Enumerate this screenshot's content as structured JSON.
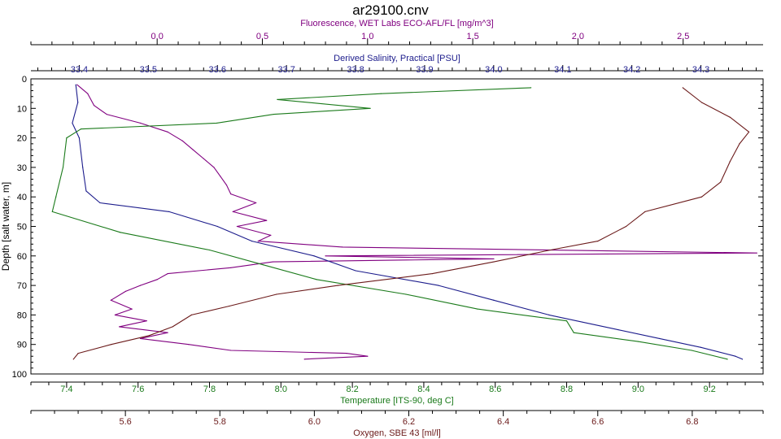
{
  "chart_data": {
    "type": "line",
    "title": "ar29100.cnv",
    "y_axis": {
      "label": "Depth [salt water, m]",
      "range": [
        0,
        100
      ],
      "ticks": [
        0,
        10,
        20,
        30,
        40,
        50,
        60,
        70,
        80,
        90,
        100
      ],
      "inverted": true
    },
    "axes": [
      {
        "id": "fluorescence",
        "label": "Fluorescence, WET Labs ECO-AFL/FL [mg/m^3]",
        "position": "top-outer",
        "color": "#800080",
        "range": [
          -0.6,
          2.88
        ],
        "ticks": [
          0.0,
          0.5,
          1.0,
          1.5,
          2.0,
          2.5
        ],
        "tick_labels": [
          "0.0",
          "0.5",
          "1.0",
          "1.5",
          "2.0",
          "2.5"
        ]
      },
      {
        "id": "salinity",
        "label": "Derived Salinity, Practical [PSU]",
        "position": "top-inner",
        "color": "#1c1c8c",
        "range": [
          33.33,
          34.39
        ],
        "ticks": [
          33.4,
          33.5,
          33.6,
          33.7,
          33.8,
          33.9,
          34.0,
          34.1,
          34.2,
          34.3
        ],
        "tick_labels": [
          "33.4",
          "33.5",
          "33.6",
          "33.7",
          "33.8",
          "33.9",
          "34.0",
          "34.1",
          "34.2",
          "34.3"
        ]
      },
      {
        "id": "temperature",
        "label": "Temperature [ITS-90, deg C]",
        "position": "bottom-inner",
        "color": "#1a7a1a",
        "range": [
          7.3,
          9.35
        ],
        "ticks": [
          7.4,
          7.6,
          7.8,
          8.0,
          8.2,
          8.4,
          8.6,
          8.8,
          9.0,
          9.2
        ],
        "tick_labels": [
          "7.4",
          "7.6",
          "7.8",
          "8.0",
          "8.2",
          "8.4",
          "8.6",
          "8.8",
          "9.0",
          "9.2"
        ]
      },
      {
        "id": "oxygen",
        "label": "Oxygen, SBE 43 [ml/l]",
        "position": "bottom-outer",
        "color": "#6b1a1a",
        "range": [
          5.4,
          6.95
        ],
        "ticks": [
          5.6,
          5.8,
          6.0,
          6.2,
          6.4,
          6.6,
          6.8
        ],
        "tick_labels": [
          "5.6",
          "5.8",
          "6.0",
          "6.2",
          "6.4",
          "6.6",
          "6.8"
        ]
      }
    ],
    "series": [
      {
        "axis": "fluorescence",
        "color": "#800080",
        "points": [
          {
            "depth": 2,
            "value": -0.38
          },
          {
            "depth": 5,
            "value": -0.33
          },
          {
            "depth": 9,
            "value": -0.3
          },
          {
            "depth": 12,
            "value": -0.24
          },
          {
            "depth": 15,
            "value": -0.08
          },
          {
            "depth": 18,
            "value": 0.05
          },
          {
            "depth": 21,
            "value": 0.12
          },
          {
            "depth": 24,
            "value": 0.17
          },
          {
            "depth": 27,
            "value": 0.22
          },
          {
            "depth": 30,
            "value": 0.27
          },
          {
            "depth": 33,
            "value": 0.3
          },
          {
            "depth": 36,
            "value": 0.33
          },
          {
            "depth": 39,
            "value": 0.35
          },
          {
            "depth": 42,
            "value": 0.47
          },
          {
            "depth": 45,
            "value": 0.36
          },
          {
            "depth": 48,
            "value": 0.52
          },
          {
            "depth": 50,
            "value": 0.38
          },
          {
            "depth": 53,
            "value": 0.54
          },
          {
            "depth": 55,
            "value": 0.48
          },
          {
            "depth": 57,
            "value": 0.88
          },
          {
            "depth": 59,
            "value": 2.85
          },
          {
            "depth": 60,
            "value": 0.8
          },
          {
            "depth": 61,
            "value": 1.6
          },
          {
            "depth": 62,
            "value": 0.55
          },
          {
            "depth": 64,
            "value": 0.35
          },
          {
            "depth": 66,
            "value": 0.05
          },
          {
            "depth": 68,
            "value": 0.0
          },
          {
            "depth": 70,
            "value": -0.08
          },
          {
            "depth": 72,
            "value": -0.15
          },
          {
            "depth": 75,
            "value": -0.22
          },
          {
            "depth": 78,
            "value": -0.12
          },
          {
            "depth": 80,
            "value": -0.2
          },
          {
            "depth": 82,
            "value": -0.05
          },
          {
            "depth": 84,
            "value": -0.18
          },
          {
            "depth": 86,
            "value": 0.05
          },
          {
            "depth": 88,
            "value": -0.08
          },
          {
            "depth": 90,
            "value": 0.15
          },
          {
            "depth": 92,
            "value": 0.35
          },
          {
            "depth": 93,
            "value": 0.9
          },
          {
            "depth": 94,
            "value": 1.0
          },
          {
            "depth": 95,
            "value": 0.7
          }
        ]
      },
      {
        "axis": "salinity",
        "color": "#1c1c8c",
        "points": [
          {
            "depth": 2,
            "value": 33.395
          },
          {
            "depth": 8,
            "value": 33.398
          },
          {
            "depth": 15,
            "value": 33.39
          },
          {
            "depth": 20,
            "value": 33.4
          },
          {
            "depth": 30,
            "value": 33.405
          },
          {
            "depth": 38,
            "value": 33.41
          },
          {
            "depth": 42,
            "value": 33.43
          },
          {
            "depth": 45,
            "value": 33.53
          },
          {
            "depth": 50,
            "value": 33.6
          },
          {
            "depth": 55,
            "value": 33.65
          },
          {
            "depth": 60,
            "value": 33.74
          },
          {
            "depth": 65,
            "value": 33.8
          },
          {
            "depth": 70,
            "value": 33.92
          },
          {
            "depth": 75,
            "value": 34.0
          },
          {
            "depth": 80,
            "value": 34.08
          },
          {
            "depth": 85,
            "value": 34.18
          },
          {
            "depth": 88,
            "value": 34.24
          },
          {
            "depth": 91,
            "value": 34.3
          },
          {
            "depth": 94,
            "value": 34.35
          },
          {
            "depth": 95,
            "value": 34.36
          }
        ]
      },
      {
        "axis": "temperature",
        "color": "#1a7a1a",
        "points": [
          {
            "depth": 3,
            "value": 8.7
          },
          {
            "depth": 5,
            "value": 8.28
          },
          {
            "depth": 7,
            "value": 7.99
          },
          {
            "depth": 10,
            "value": 8.25
          },
          {
            "depth": 12,
            "value": 7.98
          },
          {
            "depth": 15,
            "value": 7.82
          },
          {
            "depth": 17,
            "value": 7.44
          },
          {
            "depth": 20,
            "value": 7.4
          },
          {
            "depth": 30,
            "value": 7.39
          },
          {
            "depth": 40,
            "value": 7.37
          },
          {
            "depth": 45,
            "value": 7.36
          },
          {
            "depth": 52,
            "value": 7.55
          },
          {
            "depth": 58,
            "value": 7.8
          },
          {
            "depth": 63,
            "value": 7.95
          },
          {
            "depth": 68,
            "value": 8.1
          },
          {
            "depth": 73,
            "value": 8.35
          },
          {
            "depth": 78,
            "value": 8.55
          },
          {
            "depth": 82,
            "value": 8.8
          },
          {
            "depth": 86,
            "value": 8.82
          },
          {
            "depth": 89,
            "value": 9.0
          },
          {
            "depth": 92,
            "value": 9.15
          },
          {
            "depth": 95,
            "value": 9.25
          }
        ]
      },
      {
        "axis": "oxygen",
        "color": "#6b1a1a",
        "points": [
          {
            "depth": 3,
            "value": 6.78
          },
          {
            "depth": 8,
            "value": 6.82
          },
          {
            "depth": 13,
            "value": 6.88
          },
          {
            "depth": 18,
            "value": 6.92
          },
          {
            "depth": 22,
            "value": 6.9
          },
          {
            "depth": 28,
            "value": 6.88
          },
          {
            "depth": 35,
            "value": 6.86
          },
          {
            "depth": 40,
            "value": 6.82
          },
          {
            "depth": 45,
            "value": 6.7
          },
          {
            "depth": 50,
            "value": 6.66
          },
          {
            "depth": 55,
            "value": 6.6
          },
          {
            "depth": 58,
            "value": 6.5
          },
          {
            "depth": 62,
            "value": 6.38
          },
          {
            "depth": 66,
            "value": 6.25
          },
          {
            "depth": 70,
            "value": 6.05
          },
          {
            "depth": 73,
            "value": 5.92
          },
          {
            "depth": 77,
            "value": 5.82
          },
          {
            "depth": 80,
            "value": 5.74
          },
          {
            "depth": 84,
            "value": 5.7
          },
          {
            "depth": 87,
            "value": 5.65
          },
          {
            "depth": 90,
            "value": 5.57
          },
          {
            "depth": 93,
            "value": 5.5
          },
          {
            "depth": 95,
            "value": 5.49
          }
        ]
      }
    ],
    "grid": false,
    "legend": "none"
  }
}
